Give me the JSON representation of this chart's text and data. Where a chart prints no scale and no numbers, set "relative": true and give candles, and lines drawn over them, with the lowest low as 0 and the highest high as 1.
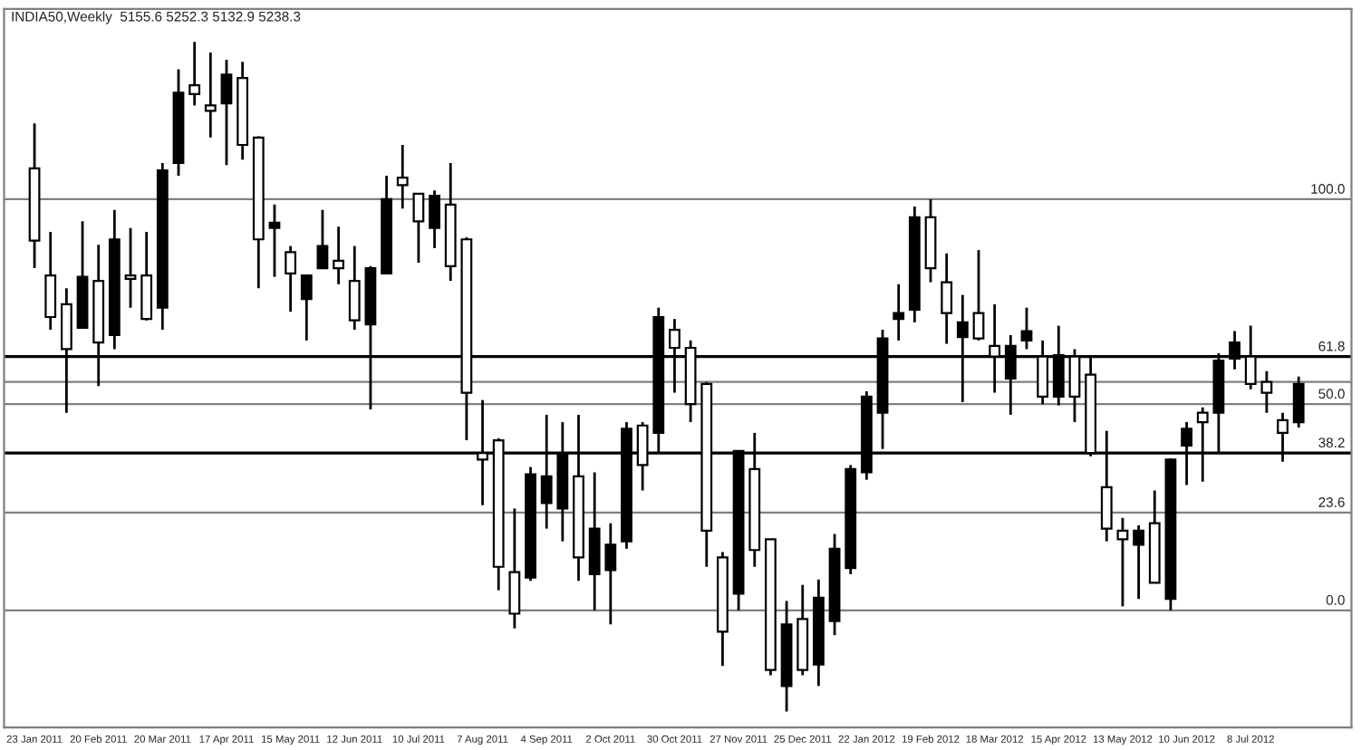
{
  "chart_data": {
    "type": "candlestick",
    "title": "INDIA50,Weekly  5155.6 5252.3 5132.9 5238.3",
    "relative": true,
    "grid": false,
    "categories": [
      "23 Jan 2011",
      null,
      null,
      null,
      "20 Feb 2011",
      null,
      null,
      null,
      "20 Mar 2011",
      null,
      null,
      null,
      "17 Apr 2011",
      null,
      null,
      null,
      "15 May 2011",
      null,
      null,
      null,
      "12 Jun 2011",
      null,
      null,
      null,
      "10 Jul 2011",
      null,
      null,
      null,
      "7 Aug 2011",
      null,
      null,
      null,
      "4 Sep 2011",
      null,
      null,
      null,
      "2 Oct 2011",
      null,
      null,
      null,
      "30 Oct 2011",
      null,
      null,
      null,
      "27 Nov 2011",
      null,
      null,
      null,
      "25 Dec 2011",
      null,
      null,
      null,
      "22 Jan 2012",
      null,
      null,
      null,
      "19 Feb 2012",
      null,
      null,
      null,
      "18 Mar 2012",
      null,
      null,
      null,
      "15 Apr 2012",
      null,
      null,
      null,
      "13 May 2012",
      null,
      null,
      null,
      "10 Jun 2012",
      null,
      null,
      null,
      "8 Jul 2012",
      null,
      null,
      null
    ],
    "ohlc": [
      [
        0.811,
        0.878,
        0.662,
        0.703
      ],
      [
        0.651,
        0.716,
        0.57,
        0.589
      ],
      [
        0.608,
        0.632,
        0.446,
        0.541
      ],
      [
        0.573,
        0.732,
        0.573,
        0.649
      ],
      [
        0.643,
        0.697,
        0.486,
        0.551
      ],
      [
        0.562,
        0.749,
        0.541,
        0.705
      ],
      [
        0.651,
        0.722,
        0.603,
        0.646
      ],
      [
        0.651,
        0.716,
        0.584,
        0.586
      ],
      [
        0.603,
        0.819,
        0.57,
        0.808
      ],
      [
        0.819,
        0.959,
        0.8,
        0.924
      ],
      [
        0.935,
        1.0,
        0.905,
        0.922
      ],
      [
        0.905,
        0.984,
        0.857,
        0.897
      ],
      [
        0.908,
        0.973,
        0.816,
        0.951
      ],
      [
        0.946,
        0.97,
        0.824,
        0.846
      ],
      [
        0.857,
        0.859,
        0.632,
        0.705
      ],
      [
        0.722,
        0.757,
        0.649,
        0.73
      ],
      [
        0.686,
        0.695,
        0.597,
        0.654
      ],
      [
        0.616,
        0.651,
        0.554,
        0.651
      ],
      [
        0.662,
        0.749,
        0.662,
        0.695
      ],
      [
        0.673,
        0.724,
        0.638,
        0.662
      ],
      [
        0.643,
        0.695,
        0.57,
        0.584
      ],
      [
        0.578,
        0.665,
        0.451,
        0.662
      ],
      [
        0.654,
        0.8,
        0.654,
        0.765
      ],
      [
        0.797,
        0.846,
        0.751,
        0.786
      ],
      [
        0.773,
        0.773,
        0.67,
        0.732
      ],
      [
        0.722,
        0.778,
        0.692,
        0.77
      ],
      [
        0.757,
        0.819,
        0.643,
        0.665
      ],
      [
        0.705,
        0.708,
        0.405,
        0.476
      ],
      [
        0.386,
        0.465,
        0.308,
        0.376
      ],
      [
        0.405,
        0.408,
        0.181,
        0.216
      ],
      [
        0.208,
        0.303,
        0.124,
        0.146
      ],
      [
        0.2,
        0.365,
        0.195,
        0.354
      ],
      [
        0.311,
        0.443,
        0.273,
        0.351
      ],
      [
        0.303,
        0.432,
        0.254,
        0.384
      ],
      [
        0.351,
        0.443,
        0.195,
        0.23
      ],
      [
        0.205,
        0.357,
        0.151,
        0.273
      ],
      [
        0.211,
        0.281,
        0.13,
        0.249
      ],
      [
        0.254,
        0.432,
        0.243,
        0.422
      ],
      [
        0.427,
        0.432,
        0.33,
        0.368
      ],
      [
        0.416,
        0.603,
        0.386,
        0.589
      ],
      [
        0.57,
        0.586,
        0.476,
        0.543
      ],
      [
        0.543,
        0.554,
        0.432,
        0.459
      ],
      [
        0.489,
        0.492,
        0.216,
        0.27
      ],
      [
        0.23,
        0.238,
        0.068,
        0.119
      ],
      [
        0.176,
        0.389,
        0.151,
        0.389
      ],
      [
        0.362,
        0.416,
        0.216,
        0.241
      ],
      [
        0.257,
        0.257,
        0.054,
        0.062
      ],
      [
        0.038,
        0.165,
        0.0,
        0.13
      ],
      [
        0.138,
        0.189,
        0.054,
        0.062
      ],
      [
        0.07,
        0.197,
        0.038,
        0.17
      ],
      [
        0.135,
        0.265,
        0.114,
        0.243
      ],
      [
        0.214,
        0.368,
        0.205,
        0.362
      ],
      [
        0.357,
        0.478,
        0.346,
        0.47
      ],
      [
        0.446,
        0.57,
        0.392,
        0.557
      ],
      [
        0.586,
        0.638,
        0.554,
        0.595
      ],
      [
        0.6,
        0.754,
        0.581,
        0.738
      ],
      [
        0.738,
        0.765,
        0.641,
        0.662
      ],
      [
        0.641,
        0.684,
        0.549,
        0.595
      ],
      [
        0.559,
        0.622,
        0.462,
        0.581
      ],
      [
        0.595,
        0.689,
        0.554,
        0.557
      ],
      [
        0.546,
        0.608,
        0.476,
        0.53
      ],
      [
        0.497,
        0.562,
        0.443,
        0.546
      ],
      [
        0.554,
        0.603,
        0.541,
        0.568
      ],
      [
        0.53,
        0.554,
        0.459,
        0.47
      ],
      [
        0.47,
        0.576,
        0.457,
        0.532
      ],
      [
        0.53,
        0.541,
        0.432,
        0.47
      ],
      [
        0.503,
        0.53,
        0.381,
        0.386
      ],
      [
        0.335,
        0.419,
        0.254,
        0.273
      ],
      [
        0.27,
        0.289,
        0.157,
        0.257
      ],
      [
        0.249,
        0.278,
        0.168,
        0.27
      ],
      [
        0.281,
        0.33,
        0.192,
        0.192
      ],
      [
        0.168,
        0.378,
        0.151,
        0.376
      ],
      [
        0.397,
        0.432,
        0.338,
        0.422
      ],
      [
        0.446,
        0.454,
        0.343,
        0.432
      ],
      [
        0.446,
        0.535,
        0.386,
        0.524
      ],
      [
        0.527,
        0.568,
        0.511,
        0.551
      ],
      [
        0.53,
        0.576,
        0.481,
        0.489
      ],
      [
        0.492,
        0.508,
        0.446,
        0.476
      ],
      [
        0.435,
        0.446,
        0.373,
        0.416
      ],
      [
        0.432,
        0.5,
        0.424,
        0.489
      ]
    ],
    "annotations": [
      {
        "text": "100.0",
        "y": 0.765
      },
      {
        "text": "61.8",
        "y": 0.53
      },
      {
        "text": "50.0",
        "y": 0.459
      },
      {
        "text": "38.2",
        "y": 0.386
      },
      {
        "text": "23.6",
        "y": 0.297
      },
      {
        "text": "0.0",
        "y": 0.151
      }
    ],
    "ref_lines": [
      {
        "axis": "y",
        "value": 0.765,
        "color": "#808080"
      },
      {
        "axis": "y",
        "value": 0.53,
        "color": "#000000"
      },
      {
        "axis": "y",
        "value": 0.459,
        "color": "#808080"
      },
      {
        "axis": "y",
        "value": 0.386,
        "color": "#000000"
      },
      {
        "axis": "y",
        "value": 0.297,
        "color": "#808080"
      },
      {
        "axis": "y",
        "value": 0.151,
        "color": "#808080"
      },
      {
        "axis": "y",
        "value": 0.492,
        "color": "#808080"
      }
    ]
  }
}
